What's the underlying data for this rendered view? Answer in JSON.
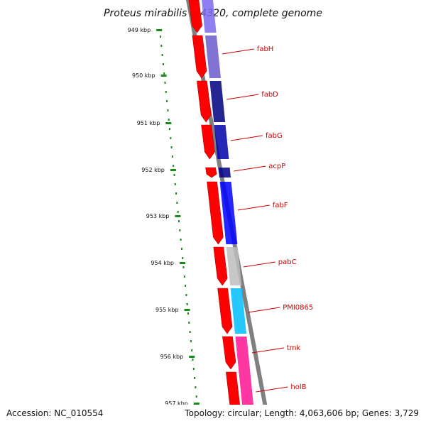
{
  "title": "Proteus mirabilis HI4320, complete genome",
  "footer": {
    "accession": "Accession: NC_010554",
    "summary": "Topology: circular; Length: 4,063,606 bp; Genes: 3,729"
  },
  "ruler": {
    "color": "#1a8a1a",
    "ticks": [
      {
        "label": "949 kbp"
      },
      {
        "label": "950 kbp"
      },
      {
        "label": "951 kbp"
      },
      {
        "label": "952 kbp"
      },
      {
        "label": "953 kbp"
      },
      {
        "label": "954 kbp"
      },
      {
        "label": "955 kbp"
      },
      {
        "label": "956 kbp"
      },
      {
        "label": "957 kbp"
      }
    ]
  },
  "genes": [
    {
      "name": "fabH",
      "color": "#7b68ee"
    },
    {
      "name": "fabD",
      "color": "#6a5acd"
    },
    {
      "name": "fabG",
      "color": "#000080"
    },
    {
      "name": "acpP",
      "color": "#0000aa"
    },
    {
      "name": "fabF",
      "color": "#00008b"
    },
    {
      "name": "pabC",
      "color": "#0000ff"
    },
    {
      "name": "PMI0865",
      "color": "#bdbdbd"
    },
    {
      "name": "tmk",
      "color": "#00bfff"
    },
    {
      "name": "holB",
      "color": "#ff1493"
    }
  ],
  "colors": {
    "cds": "#ff0000",
    "backbone": "#808080",
    "label_line": "#cc0000"
  }
}
